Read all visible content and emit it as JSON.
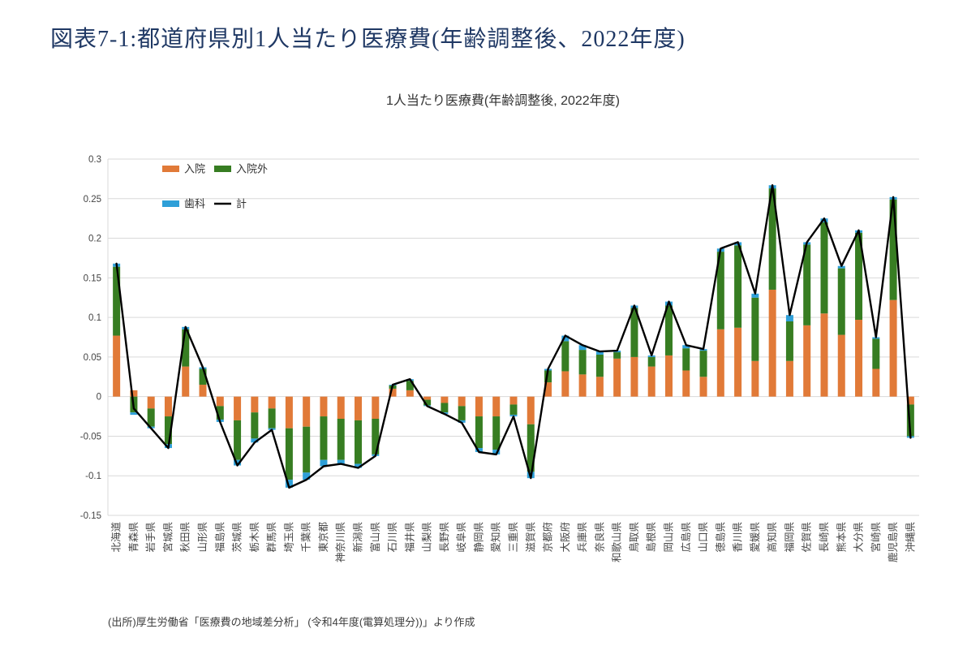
{
  "heading": "図表7-1:都道府県別1人当たり医療費(年齢調整後、2022年度)",
  "source": "(出所)厚生労働省「医療費の地域差分析」 (令和4年度(電算処理分))」より作成",
  "chart_data": {
    "type": "bar",
    "variant": "stacked-bars-with-total-line",
    "title": "1人当たり医療費(年齢調整後, 2022年度)",
    "grid": true,
    "legend_position": "top-left-two-columns",
    "ylim": [
      -0.15,
      0.3
    ],
    "yticks": [
      {
        "value": 0.3,
        "label": "0.3"
      },
      {
        "value": 0.25,
        "label": "0.25"
      },
      {
        "value": 0.2,
        "label": "0.2"
      },
      {
        "value": 0.15,
        "label": "0.15"
      },
      {
        "value": 0.1,
        "label": "0.1"
      },
      {
        "value": 0.05,
        "label": "0.05"
      },
      {
        "value": 0,
        "label": "0"
      },
      {
        "value": -0.05,
        "label": "-0.05"
      },
      {
        "value": -0.1,
        "label": "-0.1"
      },
      {
        "value": -0.15,
        "label": "-0.15"
      }
    ],
    "categories": [
      "北海道",
      "青森県",
      "岩手県",
      "宮城県",
      "秋田県",
      "山形県",
      "福島県",
      "茨城県",
      "栃木県",
      "群馬県",
      "埼玉県",
      "千葉県",
      "東京都",
      "神奈川県",
      "新潟県",
      "富山県",
      "石川県",
      "福井県",
      "山梨県",
      "長野県",
      "岐阜県",
      "静岡県",
      "愛知県",
      "三重県",
      "滋賀県",
      "京都府",
      "大阪府",
      "兵庫県",
      "奈良県",
      "和歌山県",
      "鳥取県",
      "島根県",
      "岡山県",
      "広島県",
      "山口県",
      "徳島県",
      "香川県",
      "愛媛県",
      "高知県",
      "福岡県",
      "佐賀県",
      "長崎県",
      "熊本県",
      "大分県",
      "宮崎県",
      "鹿児島県",
      "沖縄県"
    ],
    "series": [
      {
        "name": "入院",
        "key": "inpatient",
        "type": "bar",
        "color": "#E17A38",
        "values": [
          0.077,
          0.008,
          -0.015,
          -0.025,
          0.038,
          0.015,
          -0.012,
          -0.03,
          -0.02,
          -0.015,
          -0.04,
          -0.038,
          -0.025,
          -0.028,
          -0.03,
          -0.028,
          0.01,
          0.008,
          -0.004,
          -0.008,
          -0.012,
          -0.025,
          -0.025,
          -0.01,
          -0.035,
          0.018,
          0.032,
          0.028,
          0.025,
          0.048,
          0.05,
          0.038,
          0.052,
          0.033,
          0.025,
          0.085,
          0.087,
          0.045,
          0.135,
          0.045,
          0.09,
          0.105,
          0.078,
          0.097,
          0.035,
          0.122,
          -0.01
        ]
      },
      {
        "name": "入院外",
        "key": "outpatient",
        "type": "bar",
        "color": "#377D22",
        "values": [
          0.087,
          -0.02,
          -0.023,
          -0.035,
          0.047,
          0.02,
          -0.017,
          -0.05,
          -0.033,
          -0.025,
          -0.065,
          -0.058,
          -0.055,
          -0.052,
          -0.055,
          -0.045,
          0.004,
          0.012,
          -0.007,
          -0.012,
          -0.018,
          -0.04,
          -0.042,
          -0.013,
          -0.06,
          0.015,
          0.038,
          0.031,
          0.028,
          0.008,
          0.062,
          0.012,
          0.063,
          0.028,
          0.033,
          0.098,
          0.104,
          0.08,
          0.128,
          0.05,
          0.102,
          0.115,
          0.084,
          0.11,
          0.038,
          0.127,
          -0.04
        ]
      },
      {
        "name": "歯科",
        "key": "dental",
        "type": "bar",
        "color": "#2E9FD8",
        "values": [
          0.004,
          -0.003,
          -0.002,
          -0.005,
          0.003,
          0.002,
          -0.003,
          -0.007,
          -0.005,
          -0.002,
          -0.01,
          -0.009,
          -0.008,
          -0.005,
          -0.005,
          -0.002,
          0.001,
          0.002,
          -0.001,
          -0.002,
          -0.003,
          -0.005,
          -0.006,
          -0.002,
          -0.008,
          0.002,
          0.007,
          0.006,
          0.004,
          0.002,
          0.003,
          0.002,
          0.005,
          0.004,
          0.002,
          0.004,
          0.004,
          0.005,
          0.004,
          0.008,
          0.003,
          0.005,
          0.003,
          0.003,
          0.002,
          0.003,
          -0.002
        ]
      },
      {
        "name": "計",
        "key": "total",
        "type": "line",
        "color": "#000000",
        "values": [
          0.168,
          -0.015,
          -0.04,
          -0.065,
          0.088,
          0.037,
          -0.032,
          -0.087,
          -0.058,
          -0.042,
          -0.115,
          -0.105,
          -0.088,
          -0.085,
          -0.09,
          -0.075,
          0.015,
          0.022,
          -0.012,
          -0.022,
          -0.033,
          -0.07,
          -0.073,
          -0.025,
          -0.103,
          0.035,
          0.077,
          0.065,
          0.057,
          0.058,
          0.115,
          0.052,
          0.12,
          0.065,
          0.06,
          0.187,
          0.195,
          0.13,
          0.267,
          0.103,
          0.195,
          0.225,
          0.165,
          0.21,
          0.075,
          0.252,
          -0.052
        ]
      }
    ],
    "style": {
      "gridline_color": "#D9D9D9",
      "axis_text_color": "#444444",
      "title_color": "#333333"
    }
  }
}
